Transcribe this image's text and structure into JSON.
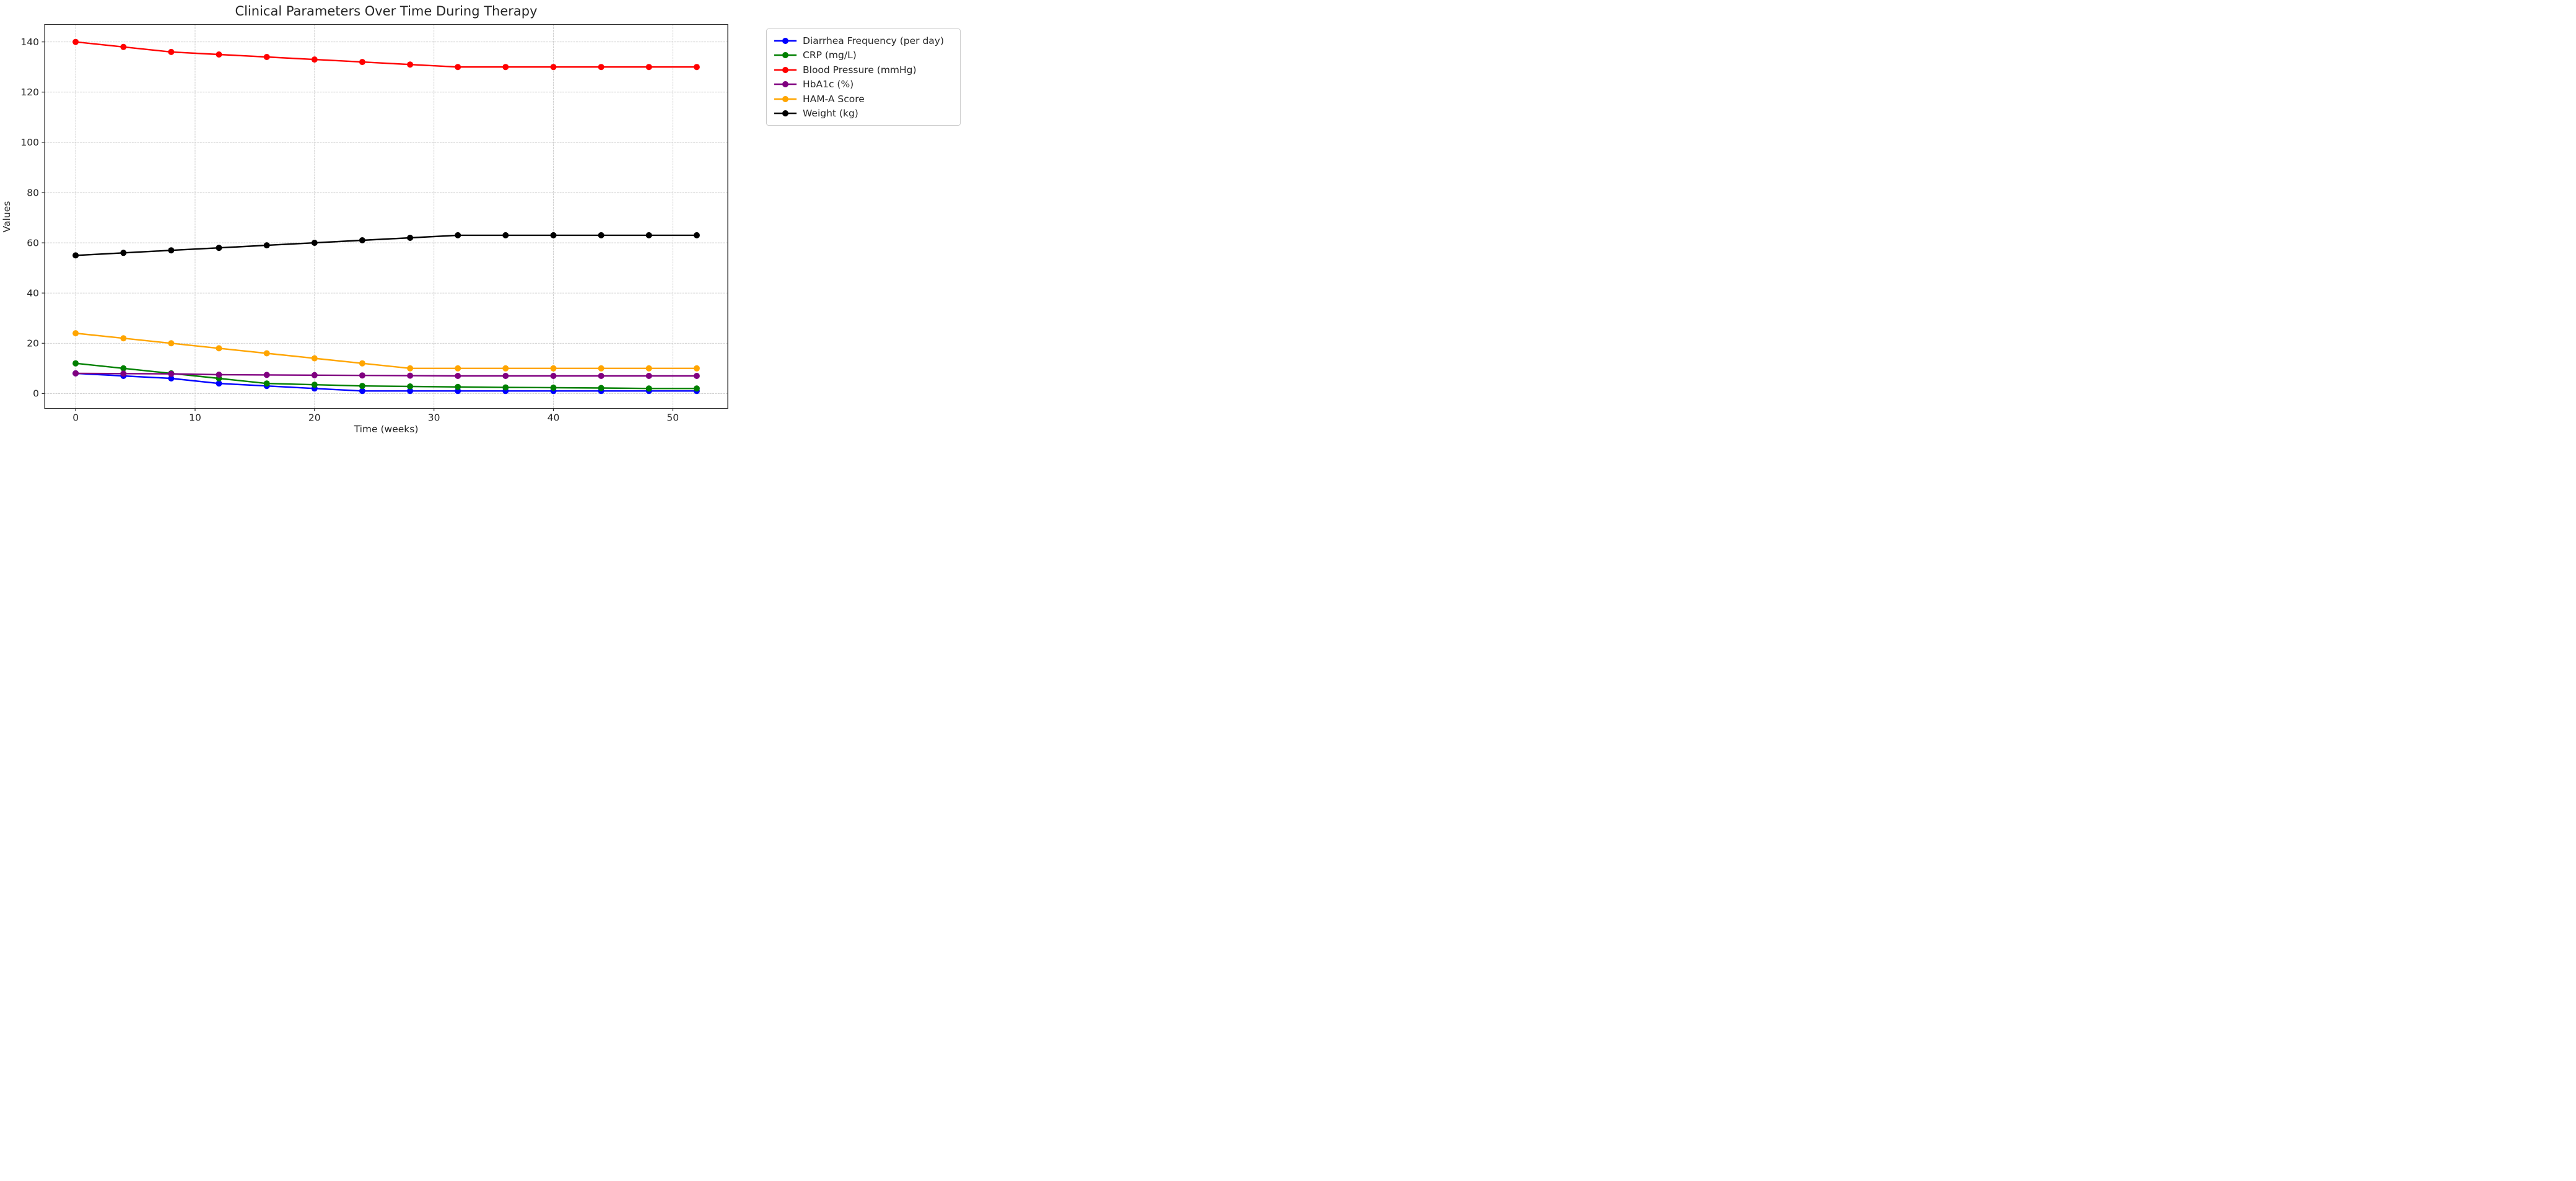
{
  "chart_data": {
    "type": "line",
    "title": "Clinical Parameters Over Time During Therapy",
    "xlabel": "Time (weeks)",
    "ylabel": "Values",
    "x": [
      0,
      4,
      8,
      12,
      16,
      20,
      24,
      28,
      32,
      36,
      40,
      44,
      48,
      52
    ],
    "series": [
      {
        "name": "Diarrhea Frequency (per day)",
        "color": "#0000ff",
        "values": [
          8,
          7,
          6,
          4,
          3,
          2,
          1,
          1,
          1,
          1,
          1,
          1,
          1,
          1
        ]
      },
      {
        "name": "CRP (mg/L)",
        "color": "#008000",
        "values": [
          12,
          10,
          8,
          6,
          4,
          3.5,
          3,
          2.8,
          2.6,
          2.4,
          2.3,
          2.2,
          2,
          2
        ]
      },
      {
        "name": "Blood Pressure (mmHg)",
        "color": "#ff0000",
        "values": [
          140,
          138,
          136,
          135,
          134,
          133,
          132,
          131,
          130,
          130,
          130,
          130,
          130,
          130
        ]
      },
      {
        "name": "HbA1c (%)",
        "color": "#800080",
        "values": [
          8,
          7.9,
          7.8,
          7.5,
          7.4,
          7.3,
          7.2,
          7.1,
          7,
          7,
          7,
          7,
          7,
          7
        ]
      },
      {
        "name": "HAM-A Score",
        "color": "#ffa500",
        "values": [
          24,
          22,
          20,
          18,
          16,
          14,
          12,
          10,
          10,
          10,
          10,
          10,
          10,
          10
        ]
      },
      {
        "name": "Weight (kg)",
        "color": "#000000",
        "values": [
          55,
          56,
          57,
          58,
          59,
          60,
          61,
          62,
          63,
          63,
          63,
          63,
          63,
          63
        ]
      }
    ],
    "x_ticks": [
      0,
      10,
      20,
      30,
      40,
      50
    ],
    "y_ticks": [
      0,
      20,
      40,
      60,
      80,
      100,
      120,
      140
    ],
    "xlim": [
      -2.6,
      54.6
    ],
    "ylim": [
      -5.95,
      146.95
    ],
    "grid": true,
    "grid_style": "dashed",
    "legend_position": "outside-upper-right",
    "style_colors": {
      "grid": "#c9c9c9",
      "spine": "#2b2b2b",
      "text": "#262626",
      "legend_border": "#cccccc",
      "background": "#ffffff"
    }
  }
}
